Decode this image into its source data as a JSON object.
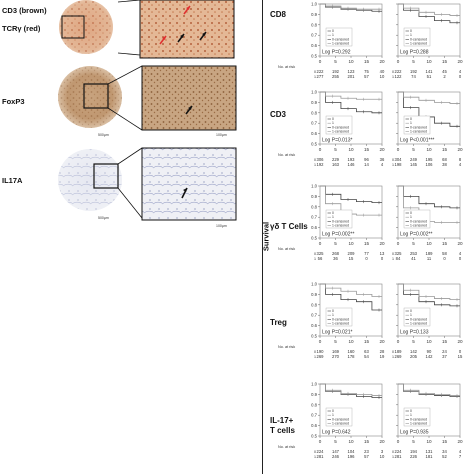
{
  "ihc": {
    "label_cd3": "CD3 (brown)",
    "label_tcr": "TCRγ (red)",
    "label_foxp3": "FoxP3",
    "label_il17a": "IL17A",
    "scale_core": "500µm",
    "scale_zoom": "100µm"
  },
  "y_axis_title": "Survival",
  "tick_y": [
    "1.0",
    "0.9",
    "0.8",
    "0.7",
    "0.6",
    "0.5"
  ],
  "tick_x": [
    "0",
    "5",
    "10",
    "15",
    "20"
  ],
  "risk_label": "No. at risk",
  "legend_entries": [
    "0",
    "1",
    "0-censored",
    "1-censored"
  ],
  "rows": [
    {
      "label": "CD8",
      "panels": [
        {
          "logp": "Log P=0.292",
          "risk0": [
            "222",
            "192",
            "123",
            "75",
            "40"
          ],
          "risk1": [
            "277",
            "255",
            "201",
            "57",
            "10"
          ]
        },
        {
          "logp": "Log P=0.288",
          "risk0": [
            "222",
            "192",
            "141",
            "45",
            "4"
          ],
          "risk1": [
            "122",
            "74",
            "51",
            "2",
            "0"
          ]
        }
      ]
    },
    {
      "label": "CD3",
      "panels": [
        {
          "logp": "Log P=0.013*",
          "risk0": [
            "306",
            "229",
            "193",
            "96",
            "36"
          ],
          "risk1": [
            "192",
            "163",
            "146",
            "14",
            "4"
          ]
        },
        {
          "logp": "Log P<0.001***",
          "risk0": [
            "304",
            "249",
            "195",
            "68",
            "8"
          ],
          "risk1": [
            "198",
            "145",
            "106",
            "38",
            "4"
          ]
        }
      ]
    },
    {
      "label": "γδ T Cells",
      "panels": [
        {
          "logp": "Log P=0.002**",
          "risk0": [
            "325",
            "268",
            "209",
            "77",
            "13"
          ],
          "risk1": [
            "56",
            "36",
            "15",
            "0",
            "0"
          ]
        },
        {
          "logp": "Log P=0.002**",
          "risk0": [
            "325",
            "253",
            "189",
            "58",
            "4"
          ],
          "risk1": [
            "84",
            "41",
            "11",
            "0",
            "0"
          ]
        }
      ]
    },
    {
      "label": "Treg",
      "panels": [
        {
          "logp": "Log P=0.021*",
          "risk0": [
            "190",
            "169",
            "160",
            "63",
            "28"
          ],
          "risk1": [
            "269",
            "270",
            "178",
            "54",
            "19"
          ]
        },
        {
          "logp": "Log P=0.133",
          "risk0": [
            "189",
            "142",
            "90",
            "24",
            "0"
          ],
          "risk1": [
            "269",
            "205",
            "142",
            "37",
            "15"
          ]
        }
      ]
    },
    {
      "label": "IL-17+ T cells",
      "label_lines": [
        "IL-17+",
        "T cells"
      ],
      "panels": [
        {
          "logp": "Log P=0.642",
          "risk0": [
            "224",
            "147",
            "104",
            "23",
            "3"
          ],
          "risk1": [
            "281",
            "246",
            "196",
            "57",
            "10"
          ]
        },
        {
          "logp": "Log P=0.935",
          "risk0": [
            "224",
            "194",
            "131",
            "34",
            "4"
          ],
          "risk1": [
            "281",
            "226",
            "181",
            "52",
            "7"
          ]
        }
      ]
    }
  ],
  "chart_data": [
    {
      "type": "line",
      "row": "CD8",
      "panel": "left",
      "x": [
        0,
        5,
        10,
        15,
        20
      ],
      "xlim": [
        0,
        20
      ],
      "ylim": [
        0.5,
        1.0
      ],
      "series": [
        {
          "name": "0",
          "values": [
            1.0,
            0.97,
            0.95,
            0.94,
            0.93
          ]
        },
        {
          "name": "1",
          "values": [
            1.0,
            0.98,
            0.96,
            0.95,
            0.95
          ]
        }
      ]
    },
    {
      "type": "line",
      "row": "CD8",
      "panel": "right",
      "x": [
        0,
        5,
        10,
        15,
        20
      ],
      "xlim": [
        0,
        20
      ],
      "ylim": [
        0.5,
        1.0
      ],
      "series": [
        {
          "name": "0",
          "values": [
            1.0,
            0.94,
            0.88,
            0.84,
            0.82
          ]
        },
        {
          "name": "1",
          "values": [
            1.0,
            0.96,
            0.92,
            0.9,
            0.89
          ]
        }
      ]
    },
    {
      "type": "line",
      "row": "CD3",
      "panel": "left",
      "x": [
        0,
        5,
        10,
        15,
        20
      ],
      "xlim": [
        0,
        20
      ],
      "ylim": [
        0.5,
        1.0
      ],
      "series": [
        {
          "name": "0",
          "values": [
            1.0,
            0.9,
            0.84,
            0.81,
            0.8
          ]
        },
        {
          "name": "1",
          "values": [
            1.0,
            0.96,
            0.94,
            0.93,
            0.93
          ]
        }
      ]
    },
    {
      "type": "line",
      "row": "CD3",
      "panel": "right",
      "x": [
        0,
        5,
        10,
        15,
        20
      ],
      "xlim": [
        0,
        20
      ],
      "ylim": [
        0.5,
        1.0
      ],
      "series": [
        {
          "name": "0",
          "values": [
            1.0,
            0.85,
            0.76,
            0.7,
            0.67
          ]
        },
        {
          "name": "1",
          "values": [
            1.0,
            0.95,
            0.92,
            0.9,
            0.89
          ]
        }
      ]
    },
    {
      "type": "line",
      "row": "γδ T Cells",
      "panel": "left",
      "x": [
        0,
        5,
        10,
        15,
        20
      ],
      "xlim": [
        0,
        20
      ],
      "ylim": [
        0.5,
        1.0
      ],
      "series": [
        {
          "name": "0",
          "values": [
            1.0,
            0.92,
            0.87,
            0.85,
            0.84
          ]
        },
        {
          "name": "1",
          "values": [
            1.0,
            0.83,
            0.73,
            0.72,
            0.72
          ]
        }
      ]
    },
    {
      "type": "line",
      "row": "γδ T Cells",
      "panel": "right",
      "x": [
        0,
        5,
        10,
        15,
        20
      ],
      "xlim": [
        0,
        20
      ],
      "ylim": [
        0.5,
        1.0
      ],
      "series": [
        {
          "name": "0",
          "values": [
            1.0,
            0.9,
            0.83,
            0.8,
            0.79
          ]
        },
        {
          "name": "1",
          "values": [
            1.0,
            0.79,
            0.66,
            0.65,
            0.65
          ]
        }
      ]
    },
    {
      "type": "line",
      "row": "Treg",
      "panel": "left",
      "x": [
        0,
        5,
        10,
        15,
        20
      ],
      "xlim": [
        0,
        20
      ],
      "ylim": [
        0.5,
        1.0
      ],
      "series": [
        {
          "name": "0",
          "values": [
            1.0,
            0.9,
            0.85,
            0.83,
            0.75
          ]
        },
        {
          "name": "1",
          "values": [
            1.0,
            0.96,
            0.93,
            0.9,
            0.88
          ]
        }
      ]
    },
    {
      "type": "line",
      "row": "Treg",
      "panel": "right",
      "x": [
        0,
        5,
        10,
        15,
        20
      ],
      "xlim": [
        0,
        20
      ],
      "ylim": [
        0.5,
        1.0
      ],
      "series": [
        {
          "name": "0",
          "values": [
            1.0,
            0.9,
            0.83,
            0.8,
            0.79
          ]
        },
        {
          "name": "1",
          "values": [
            1.0,
            0.94,
            0.88,
            0.86,
            0.85
          ]
        }
      ]
    },
    {
      "type": "line",
      "row": "IL-17+ T cells",
      "panel": "left",
      "x": [
        0,
        5,
        10,
        15,
        20
      ],
      "xlim": [
        0,
        20
      ],
      "ylim": [
        0.5,
        1.0
      ],
      "series": [
        {
          "name": "0",
          "values": [
            1.0,
            0.93,
            0.9,
            0.88,
            0.87
          ]
        },
        {
          "name": "1",
          "values": [
            1.0,
            0.94,
            0.91,
            0.9,
            0.89
          ]
        }
      ]
    },
    {
      "type": "line",
      "row": "IL-17+ T cells",
      "panel": "right",
      "x": [
        0,
        5,
        10,
        15,
        20
      ],
      "xlim": [
        0,
        20
      ],
      "ylim": [
        0.5,
        1.0
      ],
      "series": [
        {
          "name": "0",
          "values": [
            1.0,
            0.93,
            0.9,
            0.89,
            0.88
          ]
        },
        {
          "name": "1",
          "values": [
            1.0,
            0.94,
            0.91,
            0.9,
            0.89
          ]
        }
      ]
    }
  ]
}
